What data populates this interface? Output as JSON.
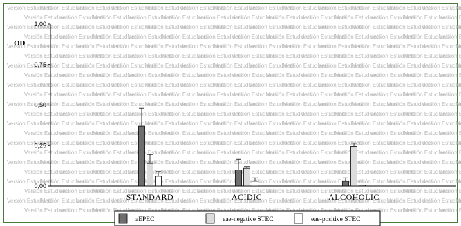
{
  "chart_data": {
    "type": "bar",
    "ylabel": "OD",
    "ylim": [
      0,
      1
    ],
    "yticks": [
      "0,00",
      "0,25",
      "0,50",
      "0,75",
      "1,00"
    ],
    "categories": [
      "STANDARD",
      "ACIDIC",
      "ALCOHOLIC"
    ],
    "series": [
      {
        "name": "aEPEC",
        "color": "#6e6e6e",
        "values": [
          0.37,
          0.1,
          0.03
        ],
        "errors": [
          0.11,
          0.065,
          0.02
        ]
      },
      {
        "name": "eae-negative STEC",
        "color": "#dcdcdc",
        "values": [
          0.14,
          0.11,
          0.245
        ],
        "errors": [
          0.055,
          0.01,
          0.02
        ]
      },
      {
        "name": "eae-positive STEC",
        "color": "#ffffff",
        "values": [
          0.06,
          0.03,
          0.005
        ],
        "errors": [
          0.03,
          0.02,
          0.0
        ]
      }
    ],
    "legend_position": "bottom",
    "grid": false
  },
  "watermark": {
    "text": "Versión Estudiantil"
  }
}
